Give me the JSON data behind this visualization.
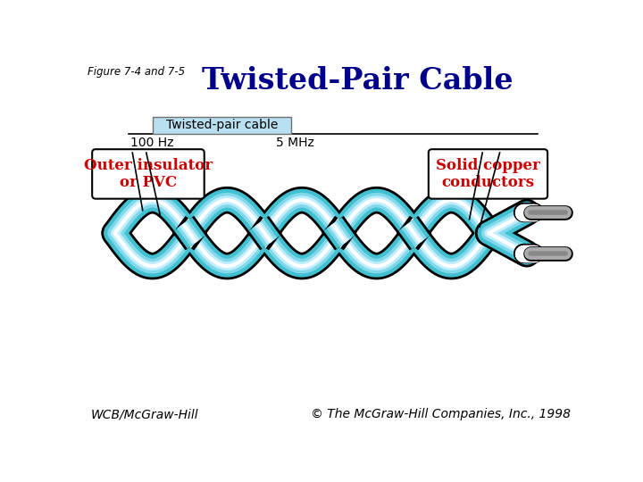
{
  "title": "Twisted-Pair Cable",
  "figure_label": "Figure 7-4 and 7-5",
  "wcb_text": "WCB/McGraw-Hill",
  "copyright_text": "© The McGraw-Hill Companies, Inc., 1998",
  "freq_bar_label": "Twisted-pair cable",
  "freq_left": "100 Hz",
  "freq_right": "5 MHz",
  "label_left": "Outer insulator\nor PVC",
  "label_right": "Solid copper\nconductors",
  "bg_color": "#ffffff",
  "title_color": "#00008B",
  "label_color": "#CC0000",
  "freq_bar_color": "#B8E0F0",
  "cable_cyan": "#40C0D0",
  "cable_light_blue": "#80D8E8",
  "cable_pale": "#C0EEFF",
  "cable_white": "#FFFFFF",
  "cable_outline": "#000000",
  "box_outline": "#000000",
  "gray_tip_color": "#AAAAAA",
  "gray_tip_dark": "#888888"
}
